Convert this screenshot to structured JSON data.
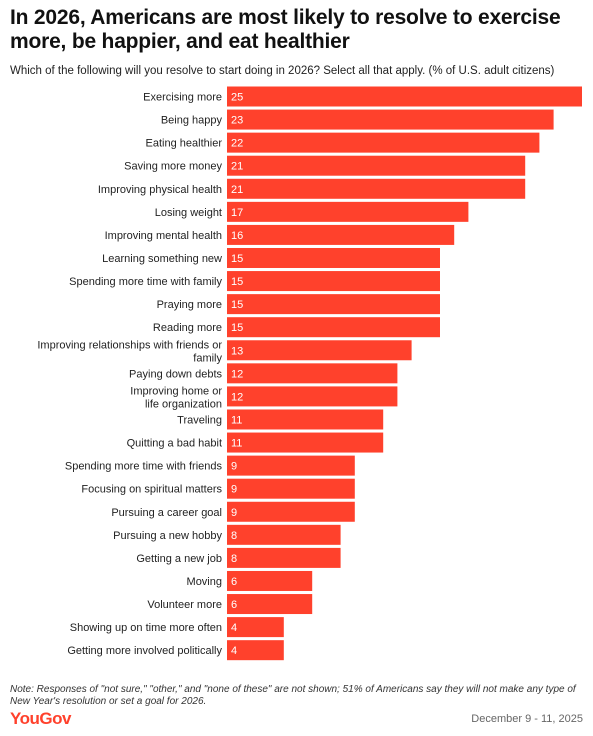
{
  "title": "In 2026, Americans are most likely to resolve to exercise more, be happier, and eat healthier",
  "subtitle": "Which of the following will you resolve to start doing in 2026? Select all that apply. (% of U.S. adult citizens)",
  "note": "Note: Responses of \"not sure,\" \"other,\" and \"none of these\" are not shown; 51% of Americans say they will not make any type of New Year's resolution or set a goal for 2026.",
  "brand": "YouGov",
  "date": "December 9 - 11, 2025",
  "colors": {
    "bar": "#ff412c",
    "bar_label": "#ffffff",
    "text": "#222222"
  },
  "chart_data": {
    "type": "bar",
    "orientation": "horizontal",
    "categories": [
      "Exercising more",
      "Being happy",
      "Eating healthier",
      "Saving more money",
      "Improving physical health",
      "Losing weight",
      "Improving mental health",
      "Learning something new",
      "Spending more time with family",
      "Praying more",
      "Reading more",
      "Improving relationships with friends or family",
      "Paying down debts",
      "Improving home or life organization",
      "Traveling",
      "Quitting a bad habit",
      "Spending more time with friends",
      "Focusing on spiritual matters",
      "Pursuing a career goal",
      "Pursuing a new hobby",
      "Getting a new job",
      "Moving",
      "Volunteer more",
      "Showing up on time more often",
      "Getting more involved politically"
    ],
    "values": [
      25,
      23,
      22,
      21,
      21,
      17,
      16,
      15,
      15,
      15,
      15,
      13,
      12,
      12,
      11,
      11,
      9,
      9,
      9,
      8,
      8,
      6,
      6,
      4,
      4
    ],
    "xlim": [
      0,
      25
    ],
    "grid": false,
    "data_labels": true
  }
}
